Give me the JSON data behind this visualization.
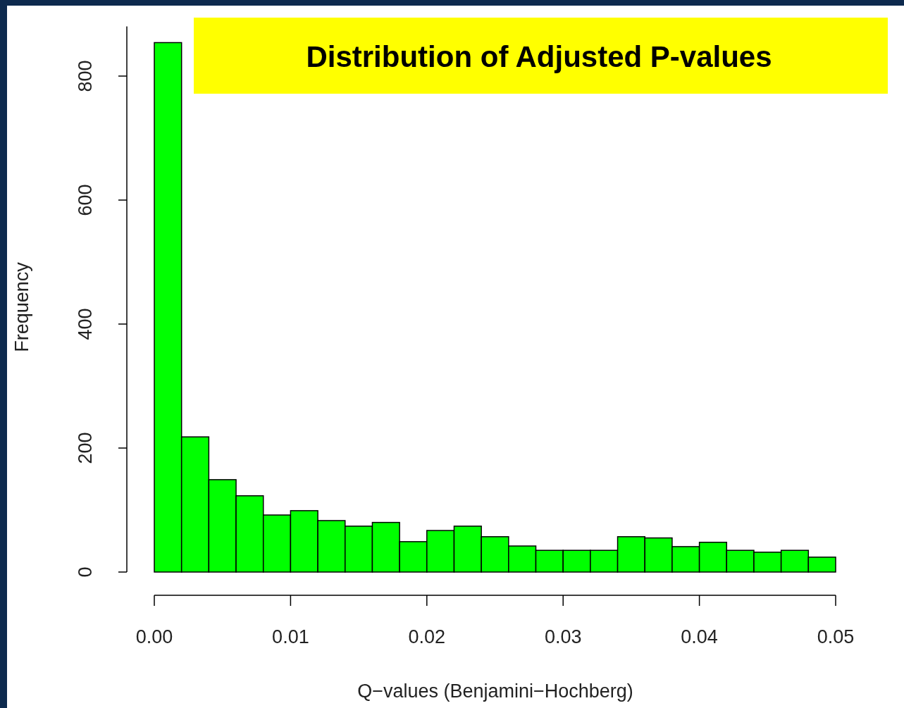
{
  "chart_data": {
    "type": "histogram",
    "title": "Distribution of Adjusted P-values",
    "xlabel": "Q−values (Benjamini−Hochberg)",
    "ylabel": "Frequency",
    "bins": [
      0,
      0.002,
      0.004,
      0.006,
      0.008,
      0.01,
      0.012,
      0.014,
      0.016,
      0.018,
      0.02,
      0.022,
      0.024,
      0.026,
      0.028,
      0.03,
      0.032,
      0.034,
      0.036,
      0.038,
      0.04,
      0.042,
      0.044,
      0.046,
      0.048,
      0.05
    ],
    "values": [
      854,
      218,
      149,
      123,
      92,
      99,
      83,
      74,
      80,
      49,
      67,
      74,
      57,
      42,
      35,
      35,
      35,
      57,
      55,
      41,
      48,
      35,
      32,
      35,
      24
    ],
    "color": "#00ff00",
    "xlim": [
      0,
      0.05
    ],
    "xticks": [
      {
        "value": 0,
        "label": "0.00"
      },
      0.01,
      0.02,
      0.03,
      0.04,
      0.05
    ],
    "ylim": [
      0,
      880
    ],
    "yticks": [
      0,
      200,
      400,
      600,
      800
    ],
    "grid": false
  }
}
